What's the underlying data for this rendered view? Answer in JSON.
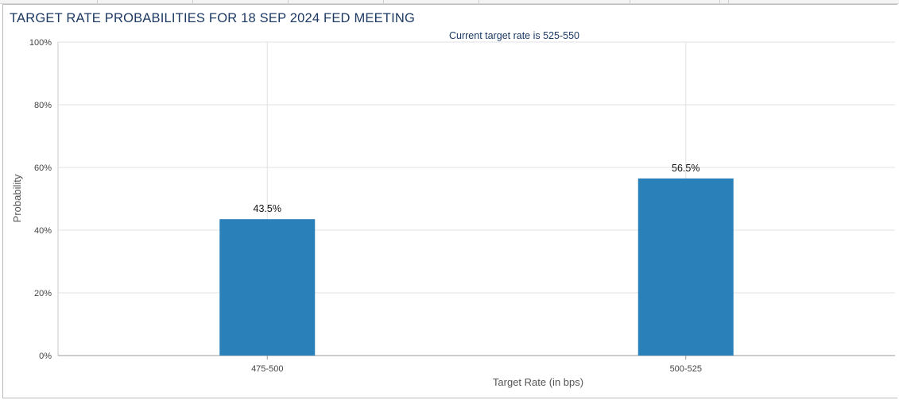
{
  "panel": {
    "title": "TARGET RATE PROBABILITIES FOR 18 SEP 2024 FED MEETING"
  },
  "colors": {
    "bar": "#2a80b9",
    "title": "#1d3a63",
    "grid": "#e0e0e0",
    "axis_text": "#444444"
  },
  "chart_data": {
    "type": "bar",
    "title": "",
    "subtitle": "Current target rate is 525-550",
    "xlabel": "Target Rate (in bps)",
    "ylabel": "Probability",
    "categories": [
      "475-500",
      "500-525"
    ],
    "series": [
      {
        "values": [
          43.5,
          56.5
        ]
      }
    ],
    "data_labels": [
      "43.5%",
      "56.5%"
    ],
    "ylim": [
      0,
      100
    ],
    "yticks": [
      0,
      20,
      40,
      60,
      80,
      100
    ],
    "ytick_labels": [
      "0%",
      "20%",
      "40%",
      "60%",
      "80%",
      "100%"
    ],
    "grid": true,
    "legend": "none"
  }
}
